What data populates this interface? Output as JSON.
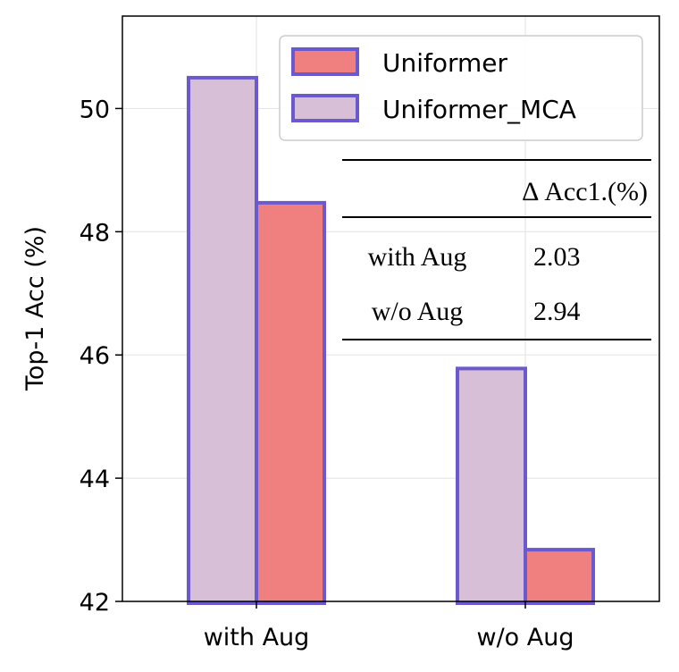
{
  "chart_data": {
    "type": "bar",
    "categories": [
      "with Aug",
      "w/o Aug"
    ],
    "series": [
      {
        "name": "Uniformer_MCA",
        "values": [
          50.5,
          45.78
        ]
      },
      {
        "name": "Uniformer",
        "values": [
          48.47,
          42.84
        ]
      }
    ],
    "ylabel": "Top-1 Acc (%)",
    "ylim": [
      42,
      51.5
    ],
    "yticks": [
      42,
      44,
      46,
      48,
      50
    ],
    "grid": true,
    "legend_position": "top-right",
    "colors": {
      "Uniformer": "#f08080",
      "Uniformer_MCA": "#d8bfd8",
      "edge": "#6a5acd"
    },
    "inset_table": {
      "header": "Δ Acc1.(%)",
      "rows": [
        {
          "label": "with Aug",
          "value": "2.03"
        },
        {
          "label": "w/o Aug",
          "value": "2.94"
        }
      ]
    }
  }
}
